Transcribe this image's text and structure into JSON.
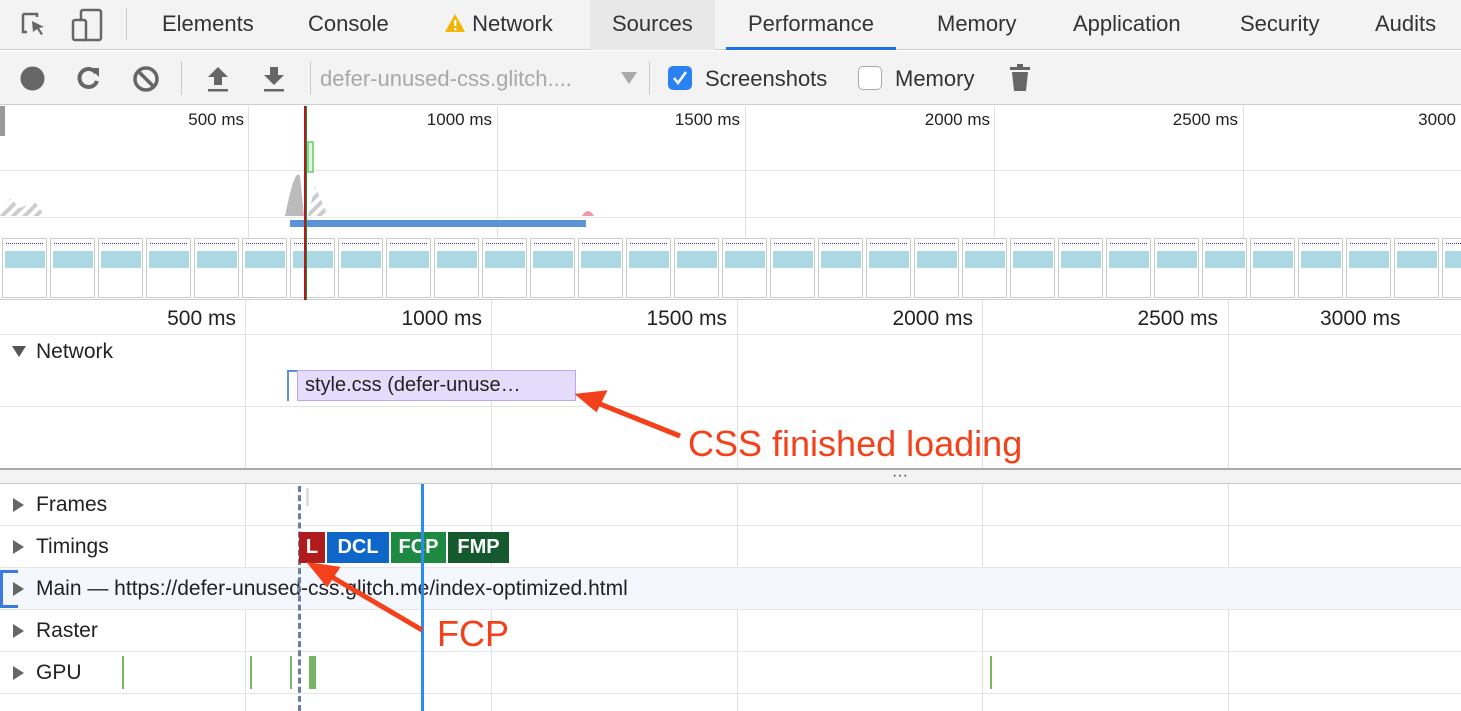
{
  "tabs": [
    {
      "label": "Elements"
    },
    {
      "label": "Console"
    },
    {
      "label": "Network",
      "warning": true
    },
    {
      "label": "Sources"
    },
    {
      "label": "Performance",
      "active": true
    },
    {
      "label": "Memory"
    },
    {
      "label": "Application"
    },
    {
      "label": "Security"
    },
    {
      "label": "Audits"
    }
  ],
  "toolbar": {
    "profile_select": "defer-unused-css.glitch....",
    "screenshots_label": "Screenshots",
    "screenshots_checked": true,
    "memory_label": "Memory",
    "memory_checked": false
  },
  "overview": {
    "ticks": [
      "500 ms",
      "1000 ms",
      "1500 ms",
      "2000 ms",
      "2500 ms",
      "3000"
    ]
  },
  "main_ruler": {
    "ticks": [
      "500 ms",
      "1000 ms",
      "1500 ms",
      "2000 ms",
      "2500 ms",
      "3000 ms"
    ]
  },
  "network": {
    "label": "Network",
    "request": "style.css (defer-unuse…"
  },
  "tracks": [
    {
      "label": "Frames"
    },
    {
      "label": "Timings"
    },
    {
      "label": "Main — https://defer-unused-css.glitch.me/index-optimized.html"
    },
    {
      "label": "Raster"
    },
    {
      "label": "GPU"
    }
  ],
  "timings": [
    {
      "label": "L",
      "color": "#b01b1b"
    },
    {
      "label": "DCL",
      "color": "#0d66c8"
    },
    {
      "label": "FCP",
      "color": "#1e8a41"
    },
    {
      "label": "FMP",
      "color": "#145a2e"
    }
  ],
  "annotations": {
    "css": "CSS finished loading",
    "fcp": "FCP",
    "color": "#f4401b"
  },
  "colors": {
    "accent": "#1a73e8",
    "warning": "#f4b400"
  }
}
